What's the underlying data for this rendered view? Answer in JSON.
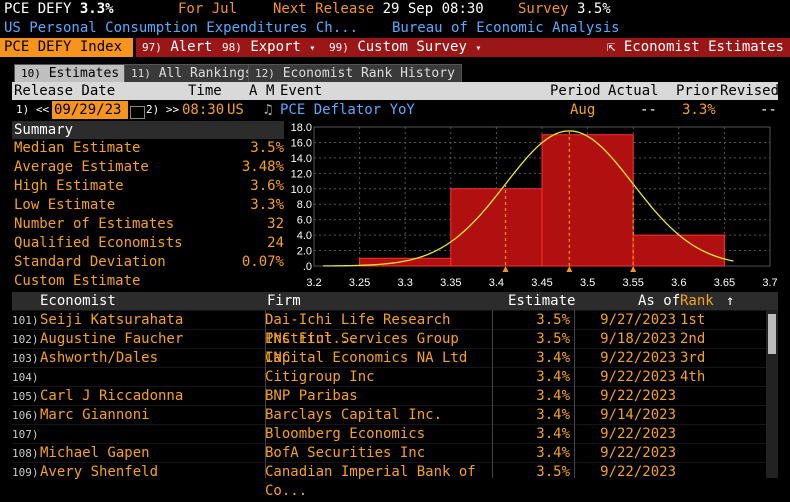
{
  "header": {
    "ticker": "PCE DEFY",
    "value": "3.3%",
    "for_label": "For Jul",
    "next_release_label": "Next Release",
    "next_release_value": "29 Sep 08:30",
    "survey_label": "Survey",
    "survey_value": "3.5%",
    "description": "US Personal Consumption Expenditures Ch...",
    "source": "Bureau of Economic Analysis"
  },
  "toolbar": {
    "index_label": "PCE DEFY Index",
    "alert_num": "97)",
    "alert_label": "Alert",
    "export_num": "98)",
    "export_label": "Export",
    "custom_num": "99)",
    "custom_label": "Custom Survey",
    "economist_label": "Economist Estimates"
  },
  "tabs": [
    {
      "num": "10)",
      "label": "Estimates"
    },
    {
      "num": "11)",
      "label": "All Rankings"
    },
    {
      "num": "12)",
      "label": "Economist Rank History"
    }
  ],
  "release_header": {
    "release_date": "Release Date",
    "time": "Time",
    "a": "A",
    "m": "M",
    "event": "Event",
    "period": "Period",
    "actual": "Actual",
    "prior": "Prior",
    "revised": "Revised"
  },
  "release_row": {
    "prev_num": "1)",
    "date": "09/29/23",
    "next_num": "2)",
    "time": "08:30",
    "country": "US",
    "event": "PCE Deflator YoY",
    "period": "Aug",
    "actual": "--",
    "prior": "3.3%",
    "revised": "--"
  },
  "summary": {
    "title": "Summary",
    "rows": [
      {
        "label": "Median Estimate",
        "value": "3.5%"
      },
      {
        "label": "Average Estimate",
        "value": "3.48%"
      },
      {
        "label": "High Estimate",
        "value": "3.6%"
      },
      {
        "label": "Low Estimate",
        "value": "3.3%"
      },
      {
        "label": "Number of Estimates",
        "value": "32"
      },
      {
        "label": "Qualified Economists",
        "value": "24"
      },
      {
        "label": "Standard Deviation",
        "value": "0.07%"
      },
      {
        "label": "Custom Estimate",
        "value": ""
      }
    ]
  },
  "chart_data": {
    "type": "bar",
    "xlim": [
      3.2,
      3.7
    ],
    "ylim": [
      0,
      18
    ],
    "x_ticks": [
      "3.2",
      "3.25",
      "3.3",
      "3.35",
      "3.4",
      "3.45",
      "3.5",
      "3.55",
      "3.6",
      "3.65",
      "3.7"
    ],
    "y_ticks": [
      "18.0",
      "16.0",
      "14.0",
      "12.0",
      "10.0",
      "8.0",
      "6.0",
      "4.0",
      "2.0",
      ".0"
    ],
    "bins": [
      {
        "from": 3.25,
        "to": 3.35,
        "value": 1.0
      },
      {
        "from": 3.35,
        "to": 3.45,
        "value": 10.0
      },
      {
        "from": 3.45,
        "to": 3.55,
        "value": 17.0
      },
      {
        "from": 3.55,
        "to": 3.65,
        "value": 4.0
      }
    ],
    "curve_mean": 3.48,
    "curve_sd": 0.07,
    "curve_peak": 17.5,
    "markers": [
      3.41,
      3.48,
      3.55
    ],
    "colors": {
      "bar": "#b01010",
      "curve": "#e8e830",
      "marker": "#f7941d"
    }
  },
  "table": {
    "headers": {
      "economist": "Economist",
      "firm": "Firm",
      "estimate": "Estimate",
      "asof": "As of",
      "rank": "Rank"
    },
    "rows": [
      {
        "n": "101)",
        "economist": "Seiji Katsurahata",
        "firm": "Dai-Ichi Life Research Institut...",
        "estimate": "3.5%",
        "asof": "9/27/2023",
        "rank": "1st"
      },
      {
        "n": "102)",
        "economist": "Augustine Faucher",
        "firm": "PNC Finl Services Group INC",
        "estimate": "3.5%",
        "asof": "9/18/2023",
        "rank": "2nd"
      },
      {
        "n": "103)",
        "economist": "Ashworth/Dales",
        "firm": "Capital Economics NA Ltd",
        "estimate": "3.4%",
        "asof": "9/22/2023",
        "rank": "3rd"
      },
      {
        "n": "104)",
        "economist": "",
        "firm": "Citigroup Inc",
        "estimate": "3.4%",
        "asof": "9/22/2023",
        "rank": "4th"
      },
      {
        "n": "105)",
        "economist": "Carl J Riccadonna",
        "firm": "BNP Paribas",
        "estimate": "3.4%",
        "asof": "9/22/2023",
        "rank": ""
      },
      {
        "n": "106)",
        "economist": "Marc Giannoni",
        "firm": "Barclays Capital Inc.",
        "estimate": "3.4%",
        "asof": "9/14/2023",
        "rank": ""
      },
      {
        "n": "107)",
        "economist": "",
        "firm": "Bloomberg Economics",
        "estimate": "3.4%",
        "asof": "9/22/2023",
        "rank": ""
      },
      {
        "n": "108)",
        "economist": "Michael Gapen",
        "firm": "BofA Securities Inc",
        "estimate": "3.4%",
        "asof": "9/22/2023",
        "rank": ""
      },
      {
        "n": "109)",
        "economist": "Avery Shenfeld",
        "firm": "Canadian Imperial Bank of Co...",
        "estimate": "3.5%",
        "asof": "9/22/2023",
        "rank": ""
      }
    ]
  }
}
